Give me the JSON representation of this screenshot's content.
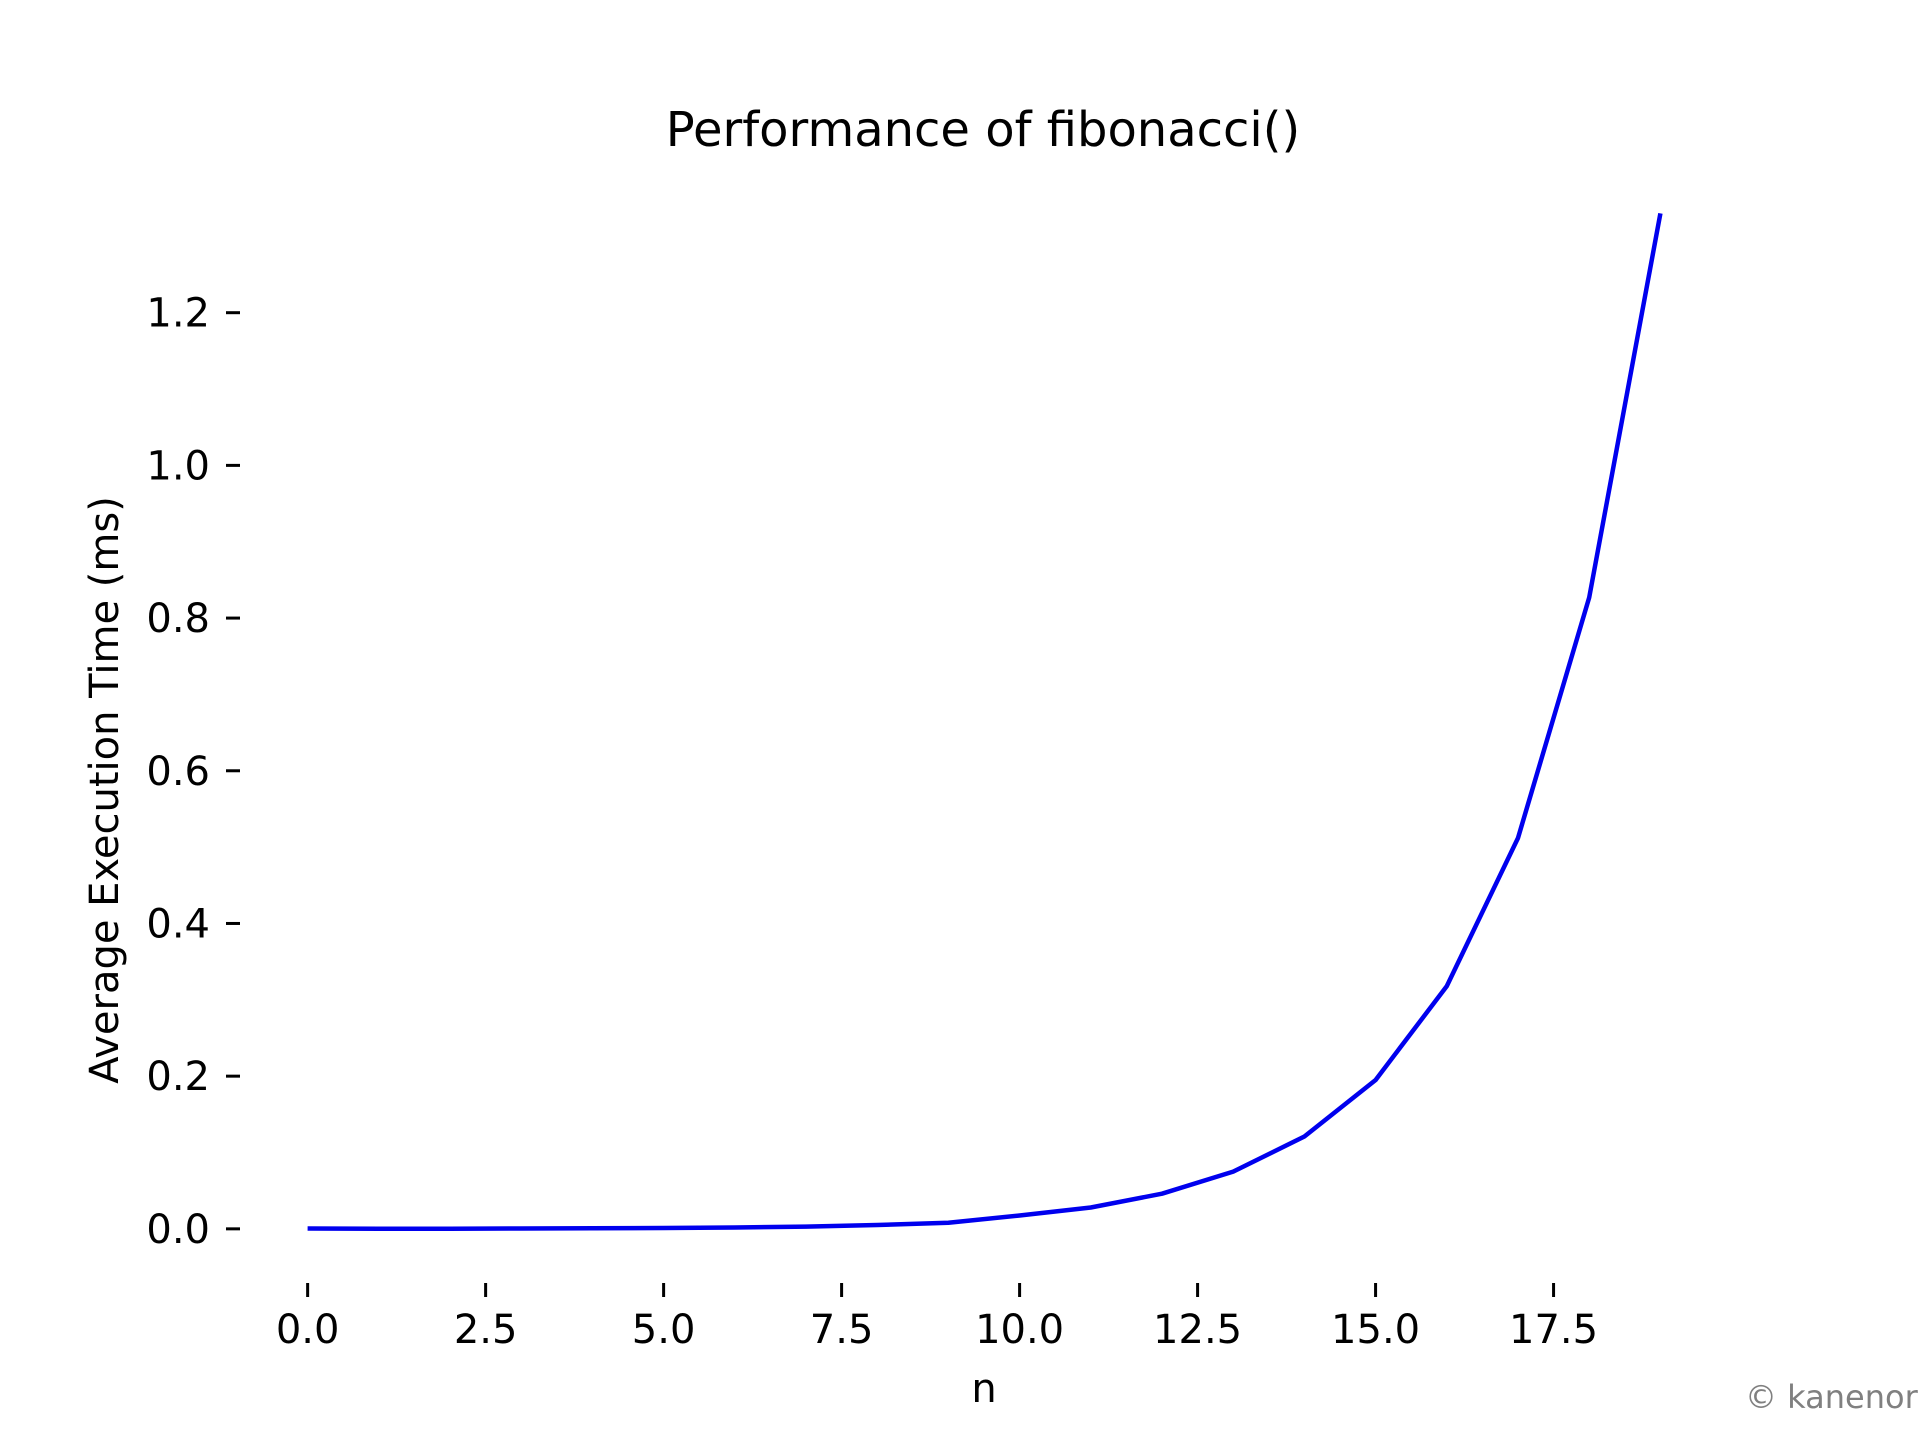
{
  "chart_data": {
    "type": "line",
    "title": "Performance of fibonacci()",
    "xlabel": "n",
    "ylabel": "Average Execution Time (ms)",
    "xlim": [
      -0.95,
      19.95
    ],
    "ylim": [
      -0.067,
      1.4
    ],
    "xticks": [
      0.0,
      2.5,
      5.0,
      7.5,
      10.0,
      12.5,
      15.0,
      17.5
    ],
    "xtick_labels": [
      "0.0",
      "2.5",
      "5.0",
      "7.5",
      "10.0",
      "12.5",
      "15.0",
      "17.5"
    ],
    "yticks": [
      0.0,
      0.2,
      0.4,
      0.6,
      0.8,
      1.0,
      1.2
    ],
    "ytick_labels": [
      "0.0",
      "0.2",
      "0.4",
      "0.6",
      "0.8",
      "1.0",
      "1.2"
    ],
    "grid": false,
    "series": [
      {
        "color": "#0000ee",
        "x": [
          0,
          1,
          2,
          3,
          4,
          5,
          6,
          7,
          8,
          9,
          10,
          11,
          12,
          13,
          14,
          15,
          16,
          17,
          18,
          19
        ],
        "y": [
          0.0005,
          0.0001,
          0.0002,
          0.0004,
          0.0007,
          0.0011,
          0.0018,
          0.003,
          0.005,
          0.008,
          0.0175,
          0.028,
          0.046,
          0.075,
          0.121,
          0.195,
          0.318,
          0.512,
          0.827,
          1.33
        ]
      }
    ]
  },
  "watermark": "© kanenor"
}
